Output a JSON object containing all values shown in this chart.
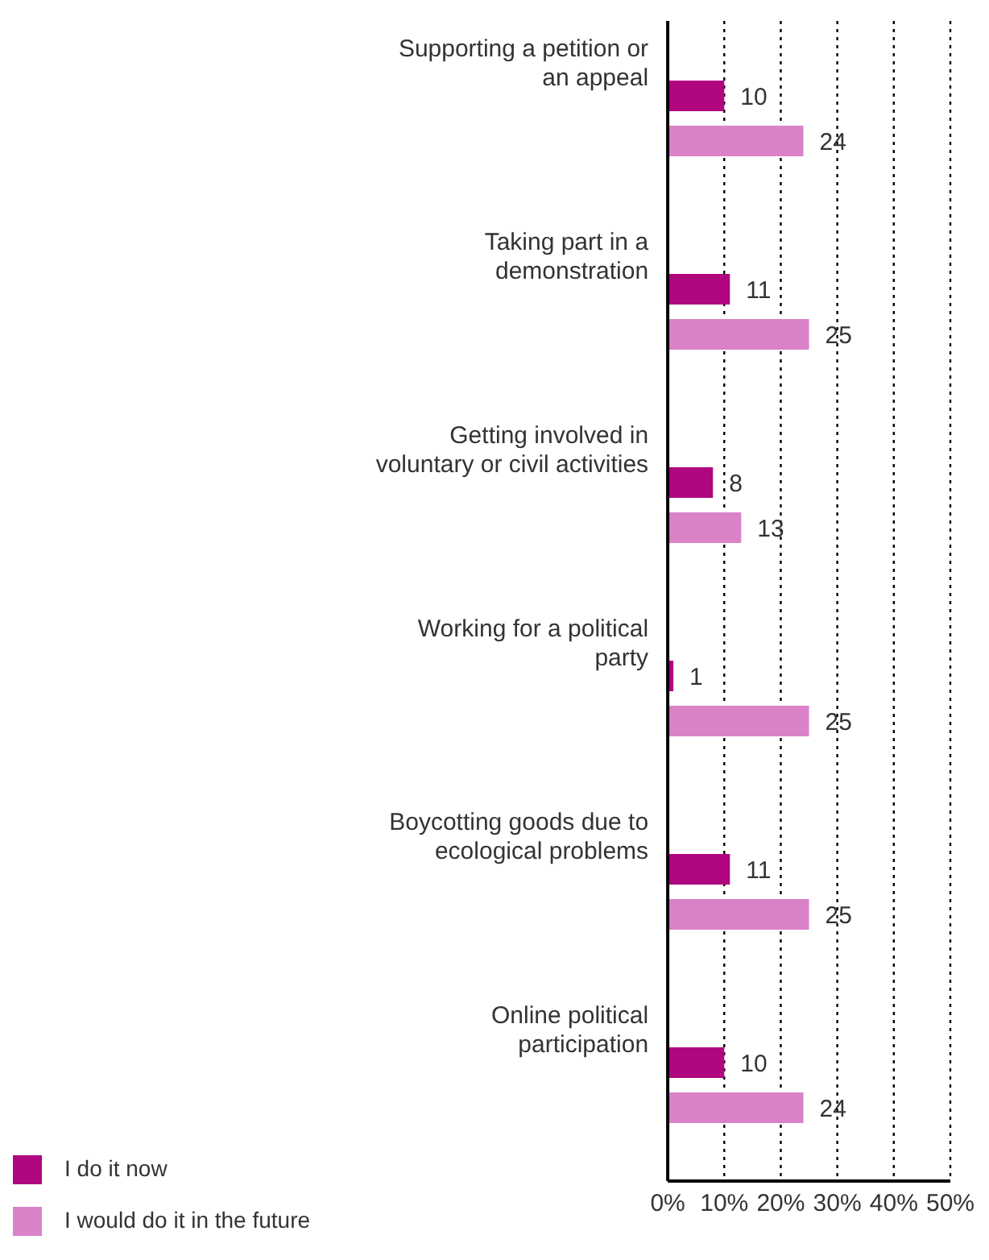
{
  "chart_data": {
    "type": "bar",
    "orientation": "horizontal",
    "categories": [
      "Supporting a petition or an appeal",
      "Taking part in a demonstration",
      "Getting involved in voluntary or civil activities",
      "Working for a political party",
      "Boycotting goods due to ecological problems",
      "Online political participation"
    ],
    "series": [
      {
        "name": "I do it now",
        "color": "#b0067f",
        "values": [
          10,
          11,
          8,
          1,
          11,
          10
        ]
      },
      {
        "name": "I would do it in the future",
        "color": "#d982c8",
        "values": [
          24,
          25,
          13,
          25,
          25,
          24
        ]
      }
    ],
    "xlim": [
      0,
      50
    ],
    "xticks": [
      {
        "value": 0,
        "label": "0%"
      },
      {
        "value": 10,
        "label": "10%"
      },
      {
        "value": 20,
        "label": "20%"
      },
      {
        "value": 30,
        "label": "30%"
      },
      {
        "value": 40,
        "label": "40%"
      },
      {
        "value": 50,
        "label": "50%"
      }
    ],
    "grid": "x",
    "data_labels": true,
    "legend": "bottom left"
  }
}
